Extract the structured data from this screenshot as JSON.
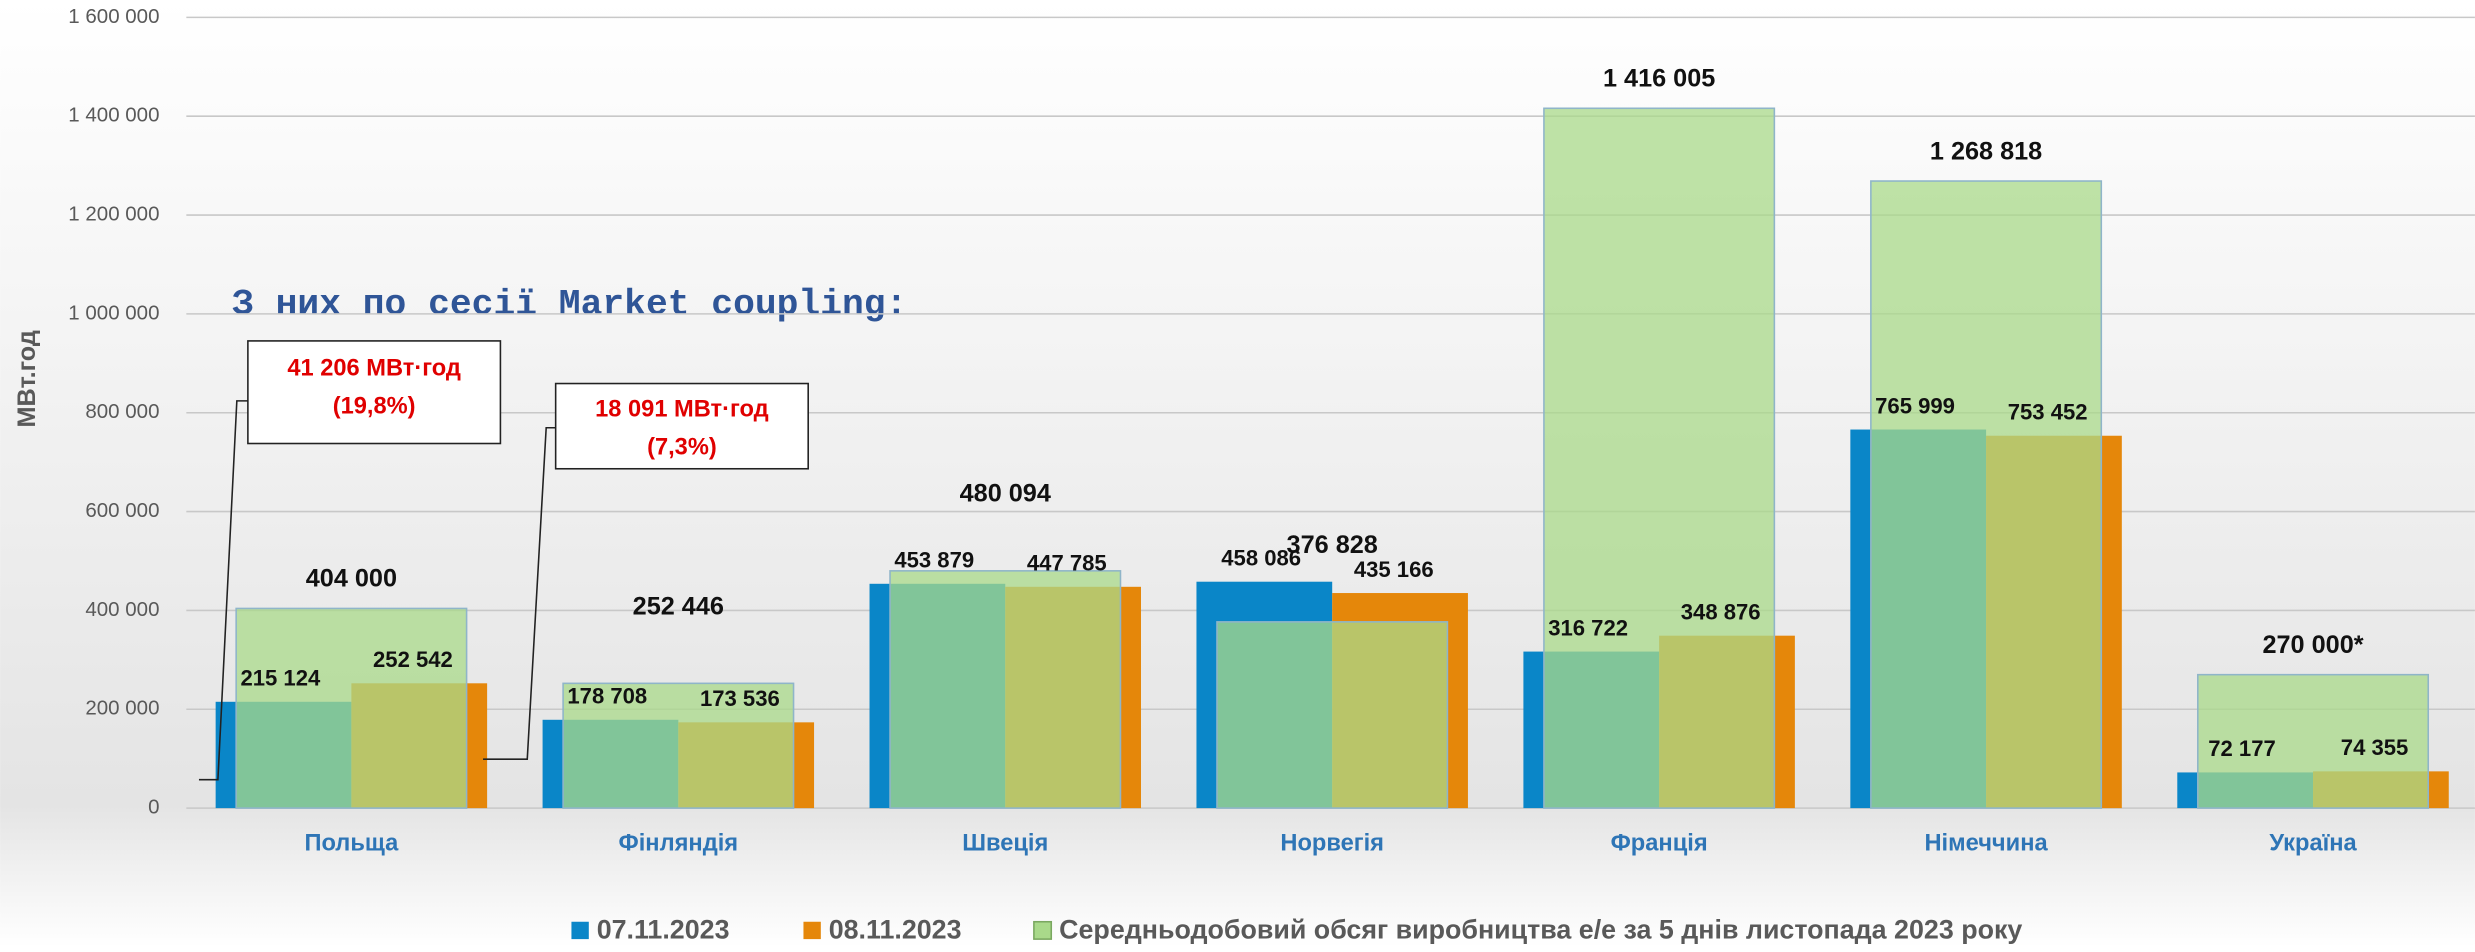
{
  "chart_data": {
    "type": "bar",
    "y_label": "МВт.год",
    "annotations": {
      "title": "З них по сесії Market coupling:",
      "callouts": [
        {
          "value": "41 206 МВт·год",
          "share": "(19,8%)"
        },
        {
          "value": "18 091 МВт·год",
          "share": "(7,3%)"
        }
      ]
    },
    "categories": [
      "Польща",
      "Фінляндія",
      "Швеція",
      "Норвегія",
      "Франція",
      "Німеччина",
      "Україна"
    ],
    "series": [
      {
        "name": "07.11.2023",
        "color": "#0a86c8",
        "values": [
          215124,
          178708,
          453879,
          458086,
          316722,
          765999,
          72177
        ],
        "value_labels": [
          "215 124",
          "178 708",
          "453 879",
          "458 086",
          "316 722",
          "765 999",
          "72 177"
        ]
      },
      {
        "name": "08.11.2023",
        "color": "#e5870a",
        "values": [
          252542,
          173536,
          447785,
          435166,
          348876,
          753452,
          74355
        ],
        "value_labels": [
          "252 542",
          "173 536",
          "447 785",
          "435 166",
          "348 876",
          "753 452",
          "74 355"
        ]
      },
      {
        "name": "Середньодобовий обсяг виробництва е/е за 5 днів листопада 2023 року",
        "color": "#a9d98a",
        "values": [
          404000,
          252446,
          480094,
          376828,
          1416005,
          1268818,
          270000
        ],
        "value_labels": [
          "404 000",
          "252 446",
          "480 094",
          "376 828",
          "1 416 005",
          "1 268 818",
          "270 000*"
        ]
      }
    ],
    "ylim": [
      0,
      1600000
    ],
    "yticks": [
      0,
      {
        "value": 200000,
        "label": "200 000"
      },
      {
        "value": 400000,
        "label": "400 000"
      },
      {
        "value": 600000,
        "label": "600 000"
      },
      {
        "value": 800000,
        "label": "800 000"
      },
      {
        "value": 1000000,
        "label": "1 000 000"
      },
      {
        "value": 1200000,
        "label": "1 200 000"
      },
      {
        "value": 1400000,
        "label": "1 400 000"
      },
      {
        "value": 1600000,
        "label": "1 600 000"
      }
    ],
    "grid": true
  }
}
